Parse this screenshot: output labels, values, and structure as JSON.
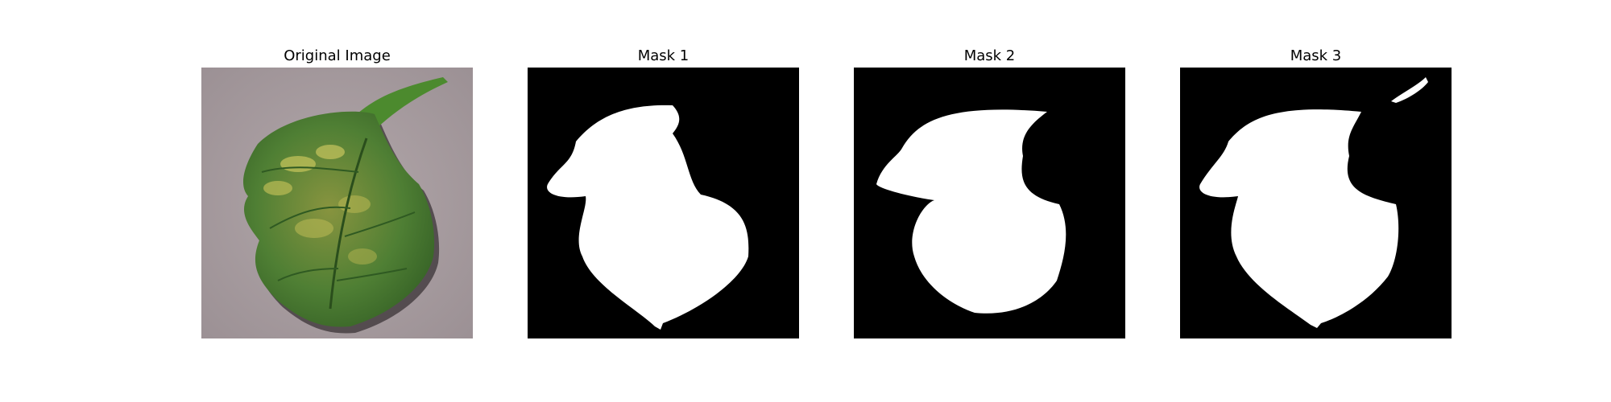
{
  "figure": {
    "panels": [
      {
        "title": "Original Image",
        "kind": "photo",
        "subject": "leaf-photo"
      },
      {
        "title": "Mask 1",
        "kind": "mask",
        "subject": "leaf-mask"
      },
      {
        "title": "Mask 2",
        "kind": "mask",
        "subject": "leaf-mask"
      },
      {
        "title": "Mask 3",
        "kind": "mask",
        "subject": "leaf-mask"
      }
    ]
  },
  "colors": {
    "background": "#ffffff",
    "mask_background": "#000000",
    "mask_foreground": "#ffffff",
    "photo_background": "#a79b9f",
    "leaf_dark": "#2f5a22",
    "leaf_mid": "#4f7f34",
    "leaf_light": "#b6b84f"
  }
}
